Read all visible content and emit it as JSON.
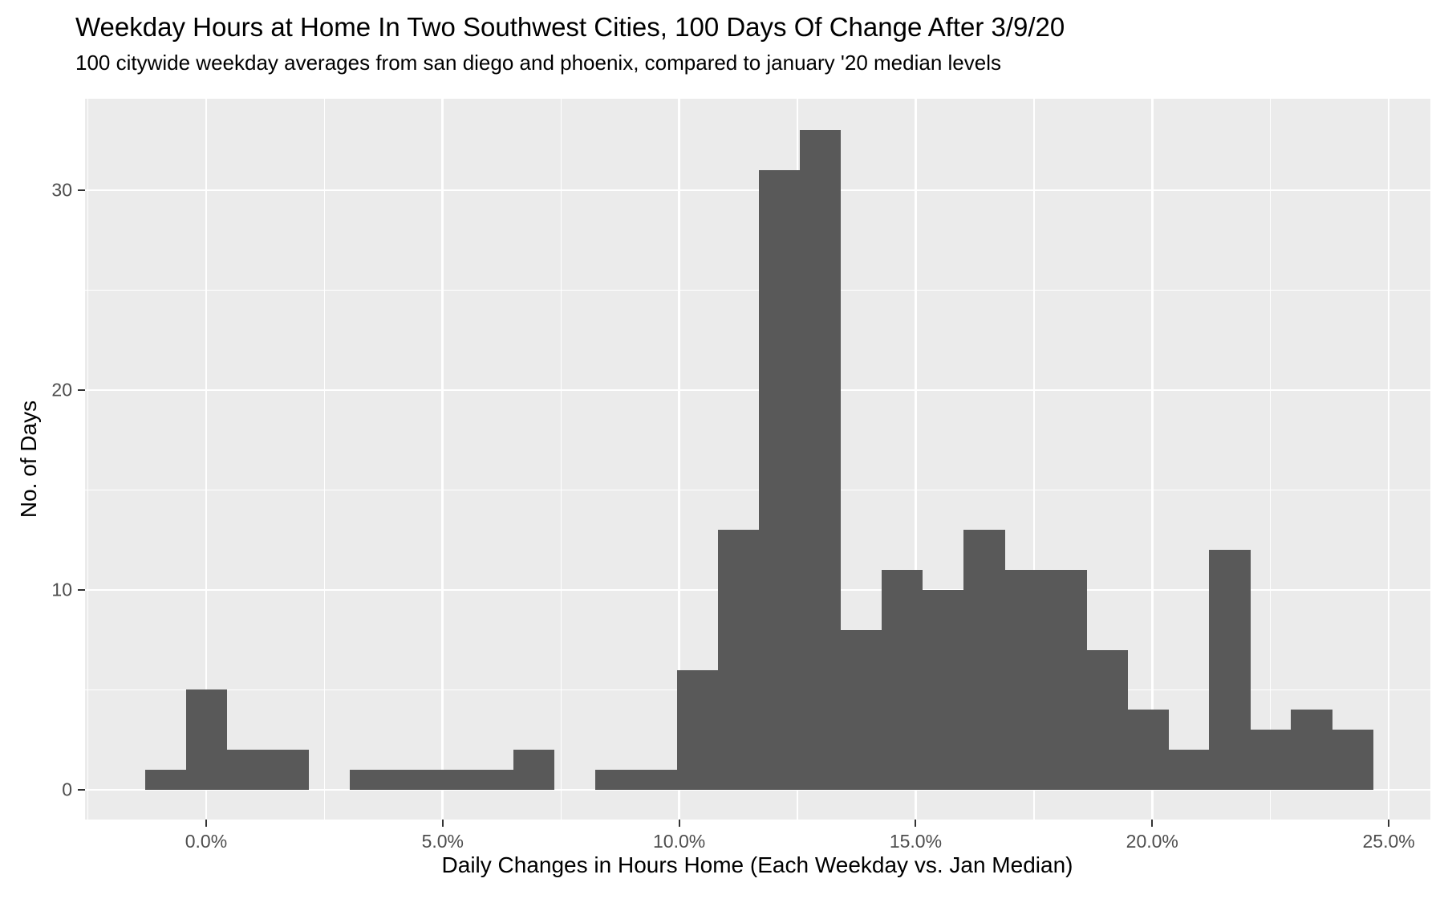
{
  "title": "Weekday Hours at Home In Two Southwest Cities, 100 Days Of Change After 3/9/20",
  "subtitle": "100 citywide weekday averages from san diego and phoenix, compared to january '20 median levels",
  "colors": {
    "bar": "#595959",
    "panel_background": "#EBEBEB",
    "gridline": "#FFFFFF",
    "axis_text": "#4D4D4D",
    "tick_mark": "#333333",
    "title_text": "#000000",
    "page_background": "#FFFFFF"
  },
  "chart_data": {
    "type": "bar",
    "subtype": "histogram",
    "title": "Weekday Hours at Home In Two Southwest Cities, 100 Days Of Change After 3/9/20",
    "subtitle": "100 citywide weekday averages from san diego and phoenix, compared to january '20 median levels",
    "xlabel": "Daily Changes in Hours Home (Each Weekday vs. Jan Median)",
    "ylabel": "No. of Days",
    "x_unit": "percent",
    "bin_start": -1.29,
    "bin_width": 0.865,
    "counts": [
      1,
      5,
      2,
      2,
      0,
      1,
      1,
      1,
      1,
      2,
      0,
      1,
      1,
      6,
      13,
      31,
      33,
      8,
      11,
      10,
      13,
      11,
      11,
      7,
      4,
      2,
      12,
      3,
      4,
      3
    ],
    "total_days": 200,
    "x_tick_values": [
      0,
      5,
      10,
      15,
      20,
      25
    ],
    "x_tick_labels": [
      "0.0%",
      "5.0%",
      "10.0%",
      "15.0%",
      "20.0%",
      "25.0%"
    ],
    "y_tick_values": [
      0,
      10,
      20,
      30
    ],
    "y_tick_labels": [
      "0",
      "10",
      "20",
      "30"
    ],
    "xlim": [
      -2.56,
      25.88
    ],
    "ylim": [
      -1.49,
      34.58
    ],
    "grid": {
      "major": "on",
      "minor": "on"
    },
    "legend": "none"
  }
}
